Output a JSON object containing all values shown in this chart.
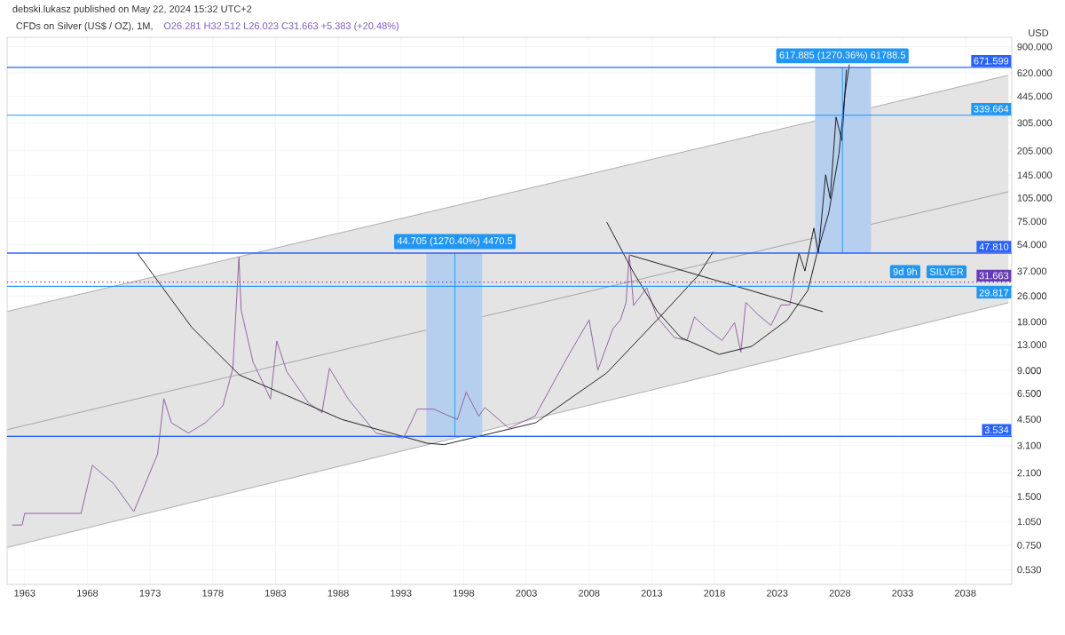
{
  "chart_data": {
    "type": "line",
    "title": "CFDs on Silver (US$ / OZ), 1M,",
    "subtitle": "O26.281  H32.512  L26.023  C31.663  +5.383 (+20.48%)",
    "ylabel": "USD",
    "annotations": [
      "debski.lukasz published on May 22, 2024 15:32 UTC+2",
      {
        "text": "44.705 (1270.40%) 4470.5",
        "x": 1997.3,
        "y": 47.81
      },
      {
        "text": "617.885 (1270.36%) 61788.5",
        "x": 2028.2,
        "y": 671.599
      },
      {
        "text": "SILVER",
        "x": 2036.5,
        "y": 31.663
      },
      {
        "text": "9d 9h",
        "x": 2033.2,
        "y": 31.663
      }
    ],
    "xlim": [
      1961.6,
      2041.7
    ],
    "ylim": [
      0.43,
      1030
    ],
    "log": "y",
    "grid": true,
    "xticks": [
      1963,
      1968,
      1973,
      1978,
      1983,
      1988,
      1993,
      1998,
      2003,
      2008,
      2013,
      2018,
      2023,
      2028,
      2033,
      2038
    ],
    "yticks": [
      {
        "value": 0.53,
        "label": "0.530"
      },
      {
        "value": 0.75,
        "label": "0.750"
      },
      {
        "value": 1.05,
        "label": "1.050"
      },
      {
        "value": 1.5,
        "label": "1.500"
      },
      {
        "value": 2.1,
        "label": "2.100"
      },
      {
        "value": 3.1,
        "label": "3.100"
      },
      {
        "value": 4.5,
        "label": "4.500"
      },
      {
        "value": 6.5,
        "label": "6.500"
      },
      {
        "value": 9,
        "label": "9.000"
      },
      {
        "value": 13,
        "label": "13.000"
      },
      {
        "value": 18,
        "label": "18.000"
      },
      {
        "value": 26,
        "label": "26.000"
      },
      {
        "value": 37,
        "label": "37.000"
      },
      {
        "value": 54,
        "label": "54.000"
      },
      {
        "value": 75,
        "label": "75.000"
      },
      {
        "value": 105,
        "label": "105.000"
      },
      {
        "value": 145,
        "label": "145.000"
      },
      {
        "value": 205,
        "label": "205.000"
      },
      {
        "value": 305,
        "label": "305.000"
      },
      {
        "value": 445,
        "label": "445.000"
      },
      {
        "value": 620,
        "label": "620.000"
      },
      {
        "value": 900,
        "label": "900.000"
      }
    ],
    "series": [
      {
        "type": "line",
        "color": "#a0a0a0",
        "x": [
          1961.64,
          2041.43
        ],
        "values": [
          3.89,
          114.5
        ],
        "lower": [
          0.728,
          23.6
        ],
        "upper": [
          20.9,
          600
        ]
      },
      {
        "type": "bar",
        "color": "#b7cfee",
        "x": [
          1997.25
        ],
        "base": [
          3.534
        ],
        "values": [
          44.276
        ]
      },
      {
        "type": "bar",
        "color": "#b7cfee",
        "x": [
          2028.25
        ],
        "base": [
          47.81
        ],
        "values": [
          623.789
        ]
      },
      {
        "color": "#8b5a9f",
        "x": [
          1962.0,
          1962.8,
          1963.0,
          1967.5,
          1968.4,
          1970.1,
          1971.7,
          1972.5,
          1973.6,
          1974.1,
          1974.7,
          1976.05,
          1977.4,
          1978.8,
          1979.6,
          1980.08,
          1980.26,
          1981.2,
          1982.6,
          1983.1,
          1983.9,
          1985.6,
          1986.7,
          1987.3,
          1988.8,
          1991.0,
          1993.2,
          1994.3,
          1995.6,
          1997.5,
          1998.2,
          1999.2,
          1999.7,
          2001.6,
          2003.7,
          2006.1,
          2008.0,
          2008.7,
          2009.9,
          2010.5,
          2010.95,
          2011.2,
          2011.55,
          2012.6,
          2013.4,
          2014.8,
          2015.8,
          2016.4,
          2017.4,
          2018.6,
          2019.6,
          2020.1,
          2020.5,
          2021.45,
          2022.5,
          2023.3,
          2024.0,
          2024.33
        ],
        "values": [
          1.0,
          1.0,
          1.18,
          1.18,
          2.34,
          1.8,
          1.21,
          1.71,
          2.75,
          6.03,
          4.28,
          3.7,
          4.28,
          5.45,
          9.3,
          45.1,
          21.3,
          10.2,
          6.0,
          13.7,
          8.85,
          5.73,
          4.95,
          9.3,
          6.0,
          3.7,
          3.44,
          5.2,
          5.2,
          4.49,
          6.63,
          4.71,
          5.32,
          3.97,
          4.71,
          10.3,
          18.5,
          9.06,
          16.3,
          18.5,
          23.7,
          46.8,
          22.7,
          29.2,
          19.3,
          14.4,
          13.8,
          19.3,
          16.3,
          13.8,
          17.8,
          11.7,
          23.7,
          20.0,
          17.1,
          22.9,
          22.9,
          31.663
        ]
      },
      {
        "type": "line",
        "color": "#111111",
        "x": [
          1971.97,
          1976.32,
          1980.13,
          1988.29,
          1995.09,
          1996.45,
          2003.73,
          2009.41,
          2013.42,
          2016.72,
          2017.9
        ],
        "values": [
          48.0,
          16.65,
          8.45,
          4.49,
          3.2,
          3.14,
          4.28,
          8.7,
          18.5,
          34.9,
          48.8
        ]
      },
      {
        "type": "line",
        "color": "#111111",
        "x": [
          2009.41,
          2011.54,
          2013.42,
          2015.31,
          2018.37,
          2020.97,
          2023.8,
          2025.45,
          2026.15,
          2027.1,
          2027.92,
          2028.39,
          2028.75
        ],
        "values": [
          74.3,
          36.3,
          21.0,
          14.4,
          11.33,
          12.7,
          18.5,
          28.2,
          46.8,
          84.3,
          195.8,
          454,
          700
        ]
      },
      {
        "type": "line",
        "color": "#111111",
        "x": [
          2011.3,
          2026.63
        ],
        "values": [
          46.4,
          20.8
        ]
      },
      {
        "type": "line",
        "color": "#111111",
        "x": [
          2024.27,
          2024.74,
          2025.21,
          2025.92,
          2026.28,
          2026.86,
          2027.22,
          2027.69,
          2028.16,
          2028.51
        ],
        "values": [
          32.0,
          47.8,
          37.1,
          68.3,
          47.8,
          145.7,
          104.1,
          331,
          236.6,
          649.5
        ]
      },
      {
        "type": "line",
        "color": "#2196f3",
        "x": [
          1997.3,
          1997.3
        ],
        "values": [
          3.534,
          47.81
        ]
      },
      {
        "type": "line",
        "color": "#2196f3",
        "x": [
          2028.2,
          2028.2
        ],
        "values": [
          47.81,
          671.599
        ]
      }
    ],
    "ref_lines": [
      {
        "axis": "y",
        "value": 671.599,
        "label": "671.599",
        "color": "#2962ff"
      },
      {
        "axis": "y",
        "value": 339.664,
        "label": "339.664",
        "color": "#2196f3"
      },
      {
        "axis": "y",
        "value": 47.81,
        "label": "47.810",
        "color": "#2962ff"
      },
      {
        "axis": "y",
        "value": 31.663,
        "label": "31.663",
        "color": "#673ab7",
        "line_style": "dotted"
      },
      {
        "axis": "y",
        "value": 29.817,
        "label": "29.817",
        "color": "#2196f3"
      },
      {
        "axis": "y",
        "value": 3.534,
        "label": "3.534",
        "color": "#2962ff"
      }
    ]
  }
}
